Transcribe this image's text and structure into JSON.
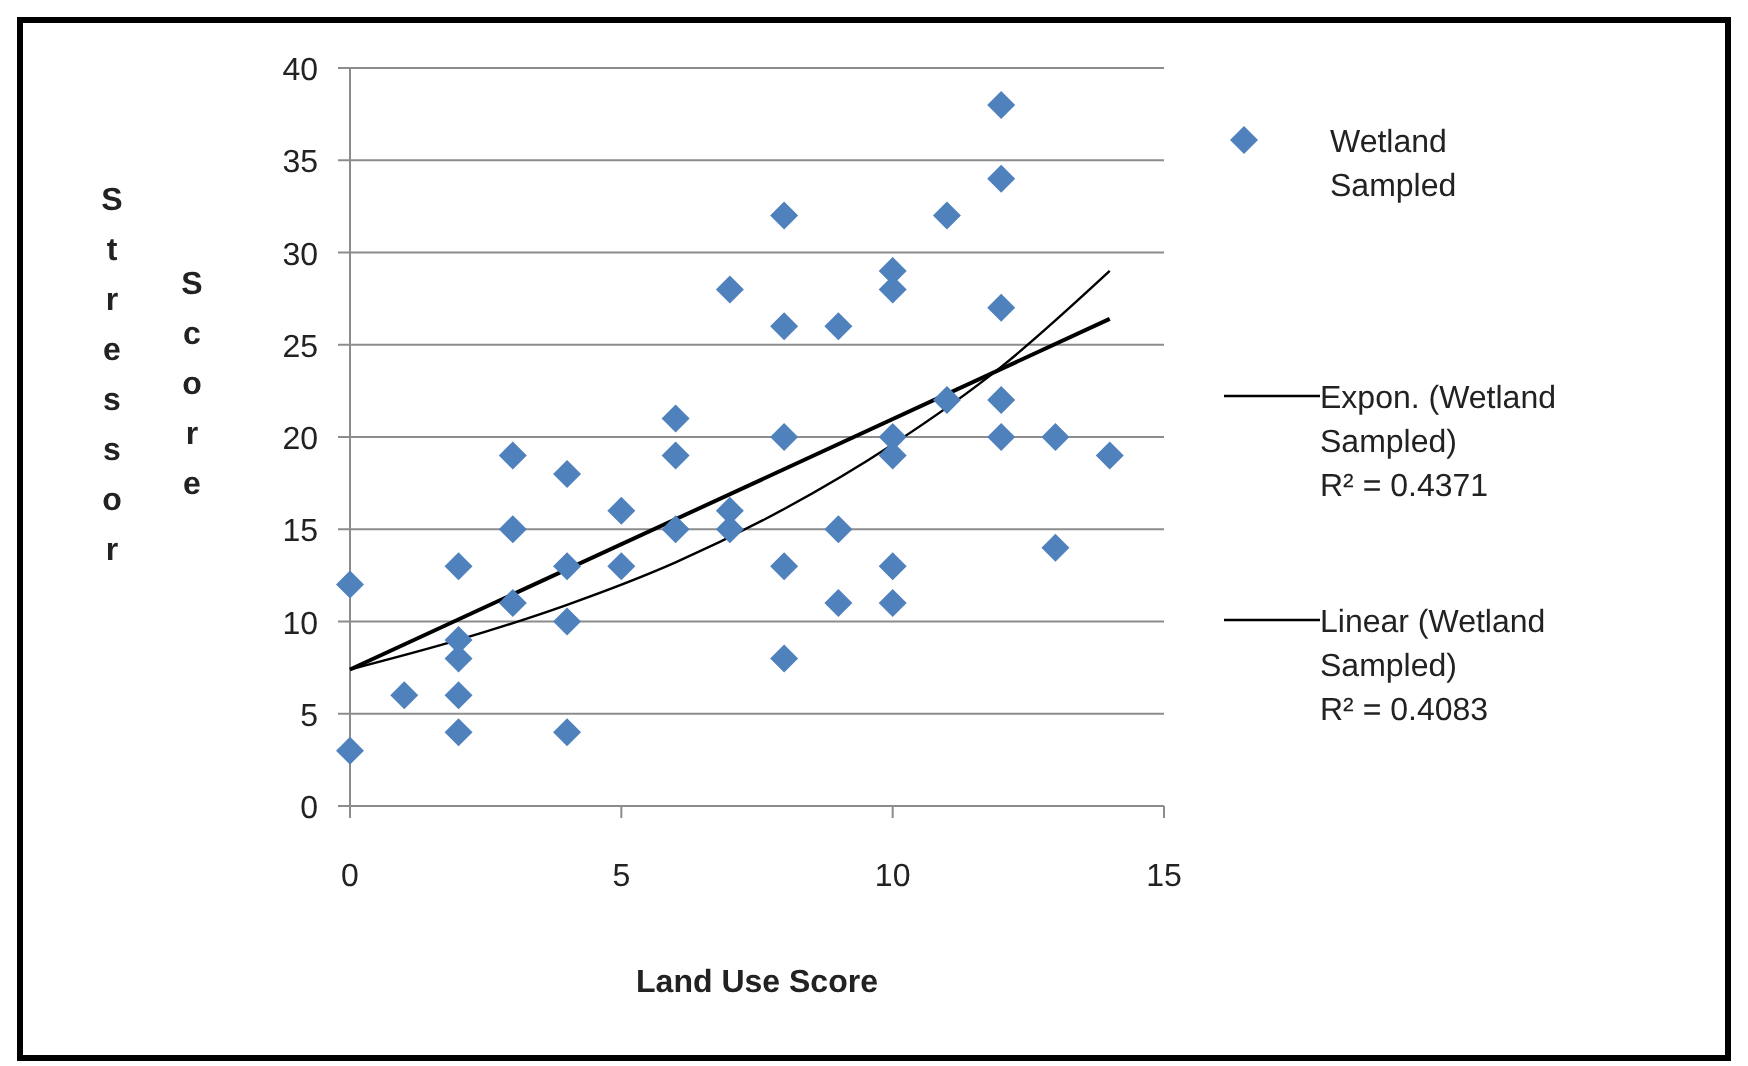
{
  "chart_data": {
    "type": "scatter",
    "xlabel": "Land Use Score",
    "ylabel": "Stressor Score",
    "xlim": [
      0,
      15
    ],
    "ylim": [
      0,
      40
    ],
    "xticks": [
      0,
      5,
      10,
      15
    ],
    "yticks": [
      0,
      5,
      10,
      15,
      20,
      25,
      30,
      35,
      40
    ],
    "grid": "y",
    "legend": "right",
    "marker": "diamond",
    "series": [
      {
        "name": "Wetland Sampled",
        "color": "#4f81bd",
        "x": [
          0,
          0,
          1,
          2,
          2,
          2,
          2,
          2,
          3,
          3,
          3,
          4,
          4,
          4,
          4,
          5,
          5,
          6,
          6,
          6,
          7,
          7,
          7,
          8,
          8,
          8,
          8,
          8,
          9,
          9,
          9,
          10,
          10,
          10,
          10,
          10,
          10,
          11,
          11,
          12,
          12,
          12,
          12,
          12,
          13,
          13,
          14
        ],
        "values": [
          12,
          3,
          6,
          13,
          9,
          8,
          6,
          4,
          19,
          15,
          11,
          18,
          13,
          10,
          4,
          16,
          13,
          21,
          19,
          15,
          28,
          16,
          15,
          32,
          26,
          20,
          13,
          8,
          26,
          15,
          11,
          29,
          28,
          20,
          19,
          13,
          11,
          32,
          22,
          38,
          34,
          27,
          22,
          20,
          20,
          14,
          19
        ]
      },
      {
        "name": "Expon. (Wetland Sampled)",
        "type": "line",
        "marker": "none",
        "color": "#000000",
        "x": [
          0,
          2,
          4,
          6,
          8,
          10,
          12,
          14
        ],
        "values": [
          7.4,
          9,
          10.9,
          13.2,
          16.1,
          19.6,
          23.8,
          29
        ]
      },
      {
        "name": "Linear (Wetland Sampled)",
        "type": "line",
        "marker": "none",
        "color": "#000000",
        "x": [
          0,
          14
        ],
        "values": [
          7.4,
          26.4
        ]
      }
    ],
    "annotations": [
      "R² = 0.4371",
      "R² = 0.4083"
    ]
  }
}
